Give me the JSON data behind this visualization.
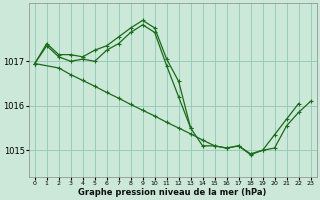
{
  "background_color": "#cce8d8",
  "grid_color": "#99ccbb",
  "line_color": "#1a6b1a",
  "xlabel": "Graphe pression niveau de la mer (hPa)",
  "ylim": [
    1014.4,
    1018.3
  ],
  "xlim": [
    -0.5,
    23.5
  ],
  "yticks": [
    1015,
    1016,
    1017
  ],
  "xticks": [
    0,
    1,
    2,
    3,
    4,
    5,
    6,
    7,
    8,
    9,
    10,
    11,
    12,
    13,
    14,
    15,
    16,
    17,
    18,
    19,
    20,
    21,
    22,
    23
  ],
  "series1_x": [
    0,
    1,
    2,
    3,
    4,
    5,
    6,
    7,
    8,
    9,
    10,
    11,
    12,
    13,
    14,
    15,
    16,
    17,
    18,
    19,
    20,
    21,
    22
  ],
  "series1_y": [
    1016.95,
    1017.4,
    1017.15,
    1017.15,
    1017.1,
    1017.25,
    1017.35,
    1017.55,
    1017.75,
    1017.92,
    1017.75,
    1017.05,
    1016.55,
    1015.5,
    1015.1,
    1015.1,
    1015.05,
    1015.1,
    1014.9,
    1015.0,
    1015.35,
    1015.7,
    1016.05
  ],
  "series2_x": [
    0,
    1,
    2,
    3,
    4,
    5,
    6,
    7,
    8,
    9,
    10,
    11,
    12,
    13
  ],
  "series2_y": [
    1016.95,
    1017.35,
    1017.1,
    1017.0,
    1017.05,
    1017.0,
    1017.25,
    1017.4,
    1017.65,
    1017.82,
    1017.65,
    1016.9,
    1016.2,
    1015.5
  ],
  "series3_x": [
    0,
    2,
    3,
    4,
    5,
    6,
    7,
    8,
    9,
    10,
    11,
    12,
    13,
    14,
    15,
    16,
    17,
    18,
    19,
    20,
    21,
    22,
    23
  ],
  "series3_y": [
    1016.95,
    1016.85,
    1016.7,
    1016.57,
    1016.44,
    1016.3,
    1016.17,
    1016.03,
    1015.9,
    1015.77,
    1015.63,
    1015.5,
    1015.37,
    1015.23,
    1015.1,
    1015.05,
    1015.1,
    1014.92,
    1015.0,
    1015.05,
    1015.55,
    1015.85,
    1016.1
  ]
}
